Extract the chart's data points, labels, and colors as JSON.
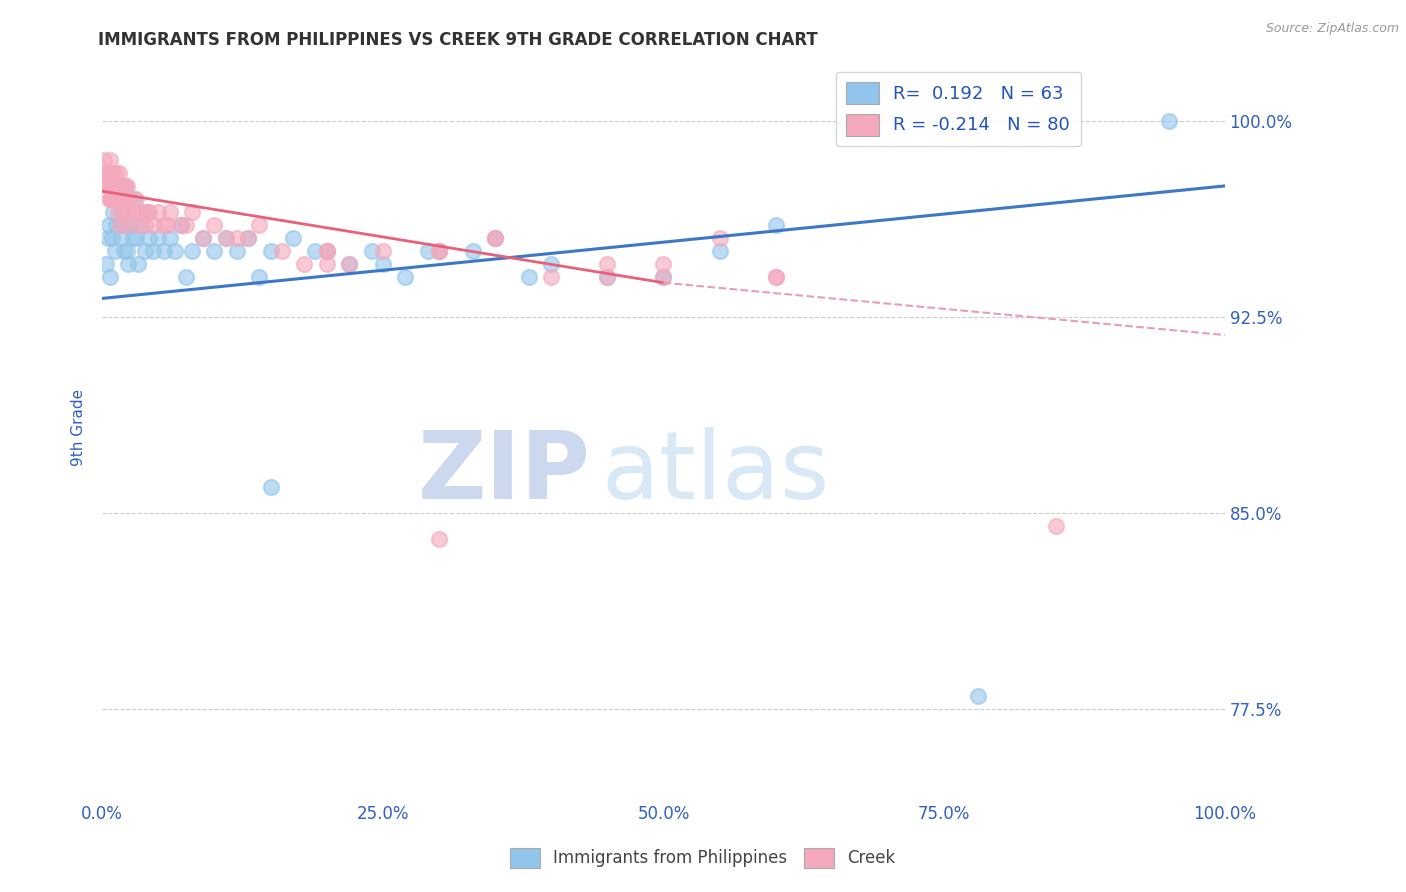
{
  "title": "IMMIGRANTS FROM PHILIPPINES VS CREEK 9TH GRADE CORRELATION CHART",
  "source_text": "Source: ZipAtlas.com",
  "xlabel_blue": "Immigrants from Philippines",
  "xlabel_pink": "Creek",
  "ylabel": "9th Grade",
  "x_min": 0.0,
  "x_max": 100.0,
  "y_min": 74.0,
  "y_max": 102.5,
  "y_ticks": [
    77.5,
    85.0,
    92.5,
    100.0
  ],
  "x_ticks": [
    0.0,
    25.0,
    50.0,
    75.0,
    100.0
  ],
  "R_blue": 0.192,
  "N_blue": 63,
  "R_pink": -0.214,
  "N_pink": 80,
  "blue_color": "#92C5EB",
  "pink_color": "#F4A8BC",
  "trend_blue_color": "#3B78C8",
  "trend_pink_color": "#E8607A",
  "trend_pink_dash_color": "#E8A0B0",
  "legend_R_color": "#2255BB",
  "background_color": "#ffffff",
  "grid_color": "#cccccc",
  "title_color": "#333333",
  "axis_label_color": "#3060C0",
  "watermark_zip_color": "#ccd8ee",
  "watermark_atlas_color": "#d8e8f5",
  "blue_trend_x0": 0.0,
  "blue_trend_y0": 93.2,
  "blue_trend_x1": 100.0,
  "blue_trend_y1": 97.5,
  "pink_solid_x0": 0.0,
  "pink_solid_y0": 97.3,
  "pink_solid_x1": 50.0,
  "pink_solid_y1": 93.8,
  "pink_dash_x0": 50.0,
  "pink_dash_y0": 93.8,
  "pink_dash_x1": 100.0,
  "pink_dash_y1": 91.8,
  "blue_scatter_x": [
    0.3,
    0.5,
    0.6,
    0.7,
    0.8,
    0.9,
    1.0,
    1.1,
    1.2,
    1.3,
    1.5,
    1.6,
    1.7,
    1.8,
    1.9,
    2.0,
    2.1,
    2.2,
    2.3,
    2.5,
    2.7,
    2.8,
    3.0,
    3.2,
    3.5,
    3.8,
    4.0,
    4.2,
    4.5,
    5.0,
    5.5,
    6.0,
    6.5,
    7.0,
    7.5,
    8.0,
    9.0,
    10.0,
    11.0,
    12.0,
    13.0,
    14.0,
    15.0,
    17.0,
    19.0,
    20.0,
    22.0,
    24.0,
    25.0,
    27.0,
    29.0,
    30.0,
    33.0,
    35.0,
    38.0,
    40.0,
    45.0,
    50.0,
    55.0,
    60.0,
    95.0,
    15.0,
    78.0
  ],
  "blue_scatter_y": [
    94.5,
    95.5,
    96.0,
    94.0,
    97.0,
    95.5,
    96.5,
    95.0,
    96.0,
    97.0,
    97.5,
    96.0,
    95.5,
    96.5,
    95.0,
    97.5,
    96.0,
    95.0,
    94.5,
    96.0,
    95.5,
    97.0,
    95.5,
    94.5,
    96.0,
    95.0,
    96.5,
    95.5,
    95.0,
    95.5,
    95.0,
    95.5,
    95.0,
    96.0,
    94.0,
    95.0,
    95.5,
    95.0,
    95.5,
    95.0,
    95.5,
    94.0,
    95.0,
    95.5,
    95.0,
    95.0,
    94.5,
    95.0,
    94.5,
    94.0,
    95.0,
    95.0,
    95.0,
    95.5,
    94.0,
    94.5,
    94.0,
    94.0,
    95.0,
    96.0,
    100.0,
    86.0,
    78.0
  ],
  "pink_scatter_x": [
    0.2,
    0.3,
    0.4,
    0.5,
    0.6,
    0.6,
    0.7,
    0.7,
    0.8,
    0.8,
    0.9,
    0.9,
    1.0,
    1.0,
    1.1,
    1.1,
    1.2,
    1.2,
    1.3,
    1.3,
    1.4,
    1.5,
    1.5,
    1.6,
    1.7,
    1.8,
    1.9,
    2.0,
    2.0,
    2.1,
    2.2,
    2.3,
    2.5,
    2.7,
    3.0,
    3.2,
    3.5,
    4.0,
    4.5,
    5.0,
    5.5,
    6.0,
    7.0,
    8.0,
    9.0,
    10.0,
    12.0,
    14.0,
    16.0,
    18.0,
    20.0,
    22.0,
    25.0,
    1.4,
    1.6,
    1.8,
    2.2,
    2.8,
    3.8,
    4.2,
    5.8,
    7.5,
    11.0,
    13.0,
    30.0,
    35.0,
    45.0,
    50.0,
    55.0,
    60.0,
    20.0,
    20.0,
    30.0,
    35.0,
    40.0,
    45.0,
    50.0,
    60.0,
    85.0,
    30.0
  ],
  "pink_scatter_y": [
    98.5,
    98.0,
    97.5,
    97.5,
    98.0,
    97.0,
    98.5,
    97.5,
    97.0,
    98.0,
    97.5,
    97.0,
    98.0,
    97.5,
    97.5,
    97.0,
    97.0,
    98.0,
    97.5,
    97.0,
    97.5,
    97.0,
    98.0,
    97.0,
    97.5,
    96.5,
    97.0,
    97.5,
    97.0,
    97.0,
    97.5,
    96.5,
    97.0,
    96.5,
    97.0,
    96.0,
    96.5,
    96.5,
    96.0,
    96.5,
    96.0,
    96.5,
    96.0,
    96.5,
    95.5,
    96.0,
    95.5,
    96.0,
    95.0,
    94.5,
    95.0,
    94.5,
    95.0,
    96.5,
    96.0,
    97.0,
    96.0,
    96.5,
    96.0,
    96.5,
    96.0,
    96.0,
    95.5,
    95.5,
    95.0,
    95.5,
    94.0,
    94.5,
    95.5,
    94.0,
    95.0,
    94.5,
    95.0,
    95.5,
    94.0,
    94.5,
    94.0,
    94.0,
    84.5,
    84.0
  ]
}
